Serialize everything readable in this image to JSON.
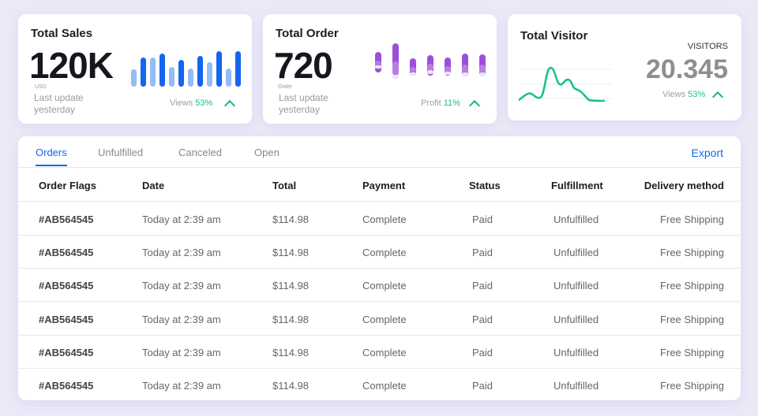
{
  "sales": {
    "title": "Total Sales",
    "value": "120K",
    "unit": "USD",
    "update": "Last update yesterday",
    "metric_label": "Views",
    "metric_value": "53%",
    "bars": [
      0.45,
      0.78,
      0.77,
      0.88,
      0.53,
      0.7,
      0.47,
      0.82,
      0.64,
      0.93,
      0.47,
      0.93
    ]
  },
  "orders": {
    "title": "Total Order",
    "value": "720",
    "unit": "Order",
    "update": "Last update yesterday",
    "metric_label": "Profit",
    "metric_value": "11%"
  },
  "visitors": {
    "title": "Total Visitor",
    "label": "VISITORS",
    "value": "20.345",
    "metric_label": "Views",
    "metric_value": "53%"
  },
  "colors": {
    "blue": "#1565f0",
    "light_blue": "#93bdf7",
    "purple": "#9b4fdc",
    "green": "#18c08a"
  },
  "table": {
    "tabs": [
      "Orders",
      "Unfulfilled",
      "Canceled",
      "Open"
    ],
    "active_tab": 0,
    "export": "Export",
    "headers": [
      "Order Flags",
      "Date",
      "Total",
      "Payment",
      "Status",
      "Fulfillment",
      "Delivery method"
    ],
    "rows": [
      [
        "#AB564545",
        "Today at 2:39 am",
        "$114.98",
        "Complete",
        "Paid",
        "Unfulfilled",
        "Free Shipping"
      ],
      [
        "#AB564545",
        "Today at 2:39 am",
        "$114.98",
        "Complete",
        "Paid",
        "Unfulfilled",
        "Free Shipping"
      ],
      [
        "#AB564545",
        "Today at 2:39 am",
        "$114.98",
        "Complete",
        "Paid",
        "Unfulfilled",
        "Free Shipping"
      ],
      [
        "#AB564545",
        "Today at 2:39 am",
        "$114.98",
        "Complete",
        "Paid",
        "Unfulfilled",
        "Free Shipping"
      ],
      [
        "#AB564545",
        "Today at 2:39 am",
        "$114.98",
        "Complete",
        "Paid",
        "Unfulfilled",
        "Free Shipping"
      ],
      [
        "#AB564545",
        "Today at 2:39 am",
        "$114.98",
        "Complete",
        "Paid",
        "Unfulfilled",
        "Free Shipping"
      ]
    ]
  }
}
